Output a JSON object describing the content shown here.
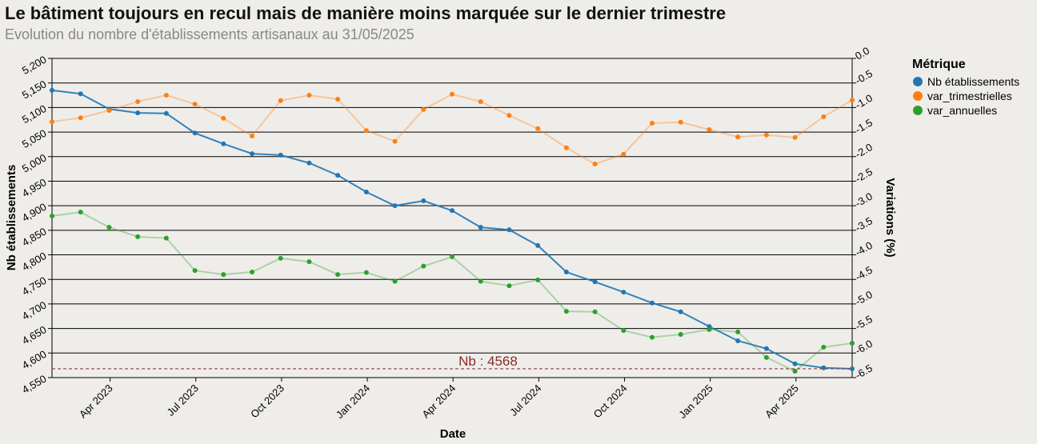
{
  "chart_data": {
    "type": "line",
    "title": "Le bâtiment toujours en recul mais de manière moins marquée sur le dernier trimestre",
    "subtitle": "Evolution du nombre d'établissements artisanaux au 31/05/2025",
    "x_label": "Date",
    "y_label": "Nb établissements",
    "y2_label": "Variations (%)",
    "legend_title": "Métrique",
    "legend_position": "right",
    "grid": true,
    "x": [
      "2023-01",
      "2023-02",
      "2023-03",
      "2023-04",
      "2023-05",
      "2023-06",
      "2023-07",
      "2023-08",
      "2023-09",
      "2023-10",
      "2023-11",
      "2023-12",
      "2024-01",
      "2024-02",
      "2024-03",
      "2024-04",
      "2024-05",
      "2024-06",
      "2024-07",
      "2024-08",
      "2024-09",
      "2024-10",
      "2024-11",
      "2024-12",
      "2025-01",
      "2025-02",
      "2025-03",
      "2025-04",
      "2025-05"
    ],
    "xticks": [
      {
        "value": "2023-04",
        "label": "Apr 2023"
      },
      {
        "value": "2023-07",
        "label": "Jul 2023"
      },
      {
        "value": "2023-10",
        "label": "Oct 2023"
      },
      {
        "value": "2024-01",
        "label": "Jan 2024"
      },
      {
        "value": "2024-04",
        "label": "Apr 2024"
      },
      {
        "value": "2024-07",
        "label": "Jul 2024"
      },
      {
        "value": "2024-10",
        "label": "Oct 2024"
      },
      {
        "value": "2025-01",
        "label": "Jan 2025"
      },
      {
        "value": "2025-04",
        "label": "Apr 2025"
      }
    ],
    "ylim": [
      4550,
      5200
    ],
    "yticks": [
      {
        "value": 4550,
        "label": "4,550"
      },
      {
        "value": 4600,
        "label": "4,600"
      },
      {
        "value": 4650,
        "label": "4,650"
      },
      {
        "value": 4700,
        "label": "4,700"
      },
      {
        "value": 4750,
        "label": "4,750"
      },
      {
        "value": 4800,
        "label": "4,800"
      },
      {
        "value": 4850,
        "label": "4,850"
      },
      {
        "value": 4900,
        "label": "4,900"
      },
      {
        "value": 4950,
        "label": "4,950"
      },
      {
        "value": 5000,
        "label": "5,000"
      },
      {
        "value": 5050,
        "label": "5,050"
      },
      {
        "value": 5100,
        "label": "5,100"
      },
      {
        "value": 5150,
        "label": "5,150"
      },
      {
        "value": 5200,
        "label": "5,200"
      }
    ],
    "y2lim": [
      -6.5,
      0
    ],
    "y2ticks": [
      {
        "value": -6.5,
        "label": "-6.5"
      },
      {
        "value": -6,
        "label": "-6.0"
      },
      -5.5,
      {
        "value": -5,
        "label": "-5.0"
      },
      -4.5,
      {
        "value": -4,
        "label": "-4.0"
      },
      -3.5,
      {
        "value": -3,
        "label": "-3.0"
      },
      -2.5,
      {
        "value": -2,
        "label": "-2.0"
      },
      -1.5,
      {
        "value": -1,
        "label": "-1.0"
      },
      -0.5,
      {
        "value": 0,
        "label": "0.0"
      }
    ],
    "series": [
      {
        "name": "Nb établissements",
        "color": "#1f77b4",
        "values": [
          5135,
          5128,
          5097,
          5089,
          5088,
          5048,
          5026,
          5006,
          5003,
          4987,
          4962,
          4928,
          4900,
          4910,
          4890,
          4856,
          4851,
          4819,
          4765,
          4745,
          4724,
          4702,
          4684,
          4654,
          4625,
          4609,
          4578,
          4570,
          4568
        ]
      },
      {
        "name": "var_trimestrielles",
        "color": "#ff7f0e",
        "axis": "y2",
        "values": [
          -1.29,
          -1.21,
          -1.06,
          -0.88,
          -0.75,
          -0.93,
          -1.22,
          -1.58,
          -0.86,
          -0.75,
          -0.83,
          -1.47,
          -1.69,
          -1.04,
          -0.73,
          -0.88,
          -1.16,
          -1.43,
          -1.82,
          -2.15,
          -1.95,
          -1.32,
          -1.3,
          -1.45,
          -1.6,
          -1.56,
          -1.61,
          -1.19,
          -0.85
        ]
      },
      {
        "name": "var_annuelles",
        "color": "#2ca02c",
        "axis": "y2",
        "values": [
          -3.21,
          -3.13,
          -3.44,
          -3.63,
          -3.66,
          -4.32,
          -4.4,
          -4.35,
          -4.07,
          -4.14,
          -4.4,
          -4.36,
          -4.54,
          -4.23,
          -4.04,
          -4.54,
          -4.63,
          -4.51,
          -5.15,
          -5.16,
          -5.54,
          -5.68,
          -5.62,
          -5.52,
          -5.57,
          -6.09,
          -6.37,
          -5.88,
          -5.8
        ]
      }
    ],
    "annotation": {
      "text": "Nb : 4568",
      "value": 4568
    }
  }
}
